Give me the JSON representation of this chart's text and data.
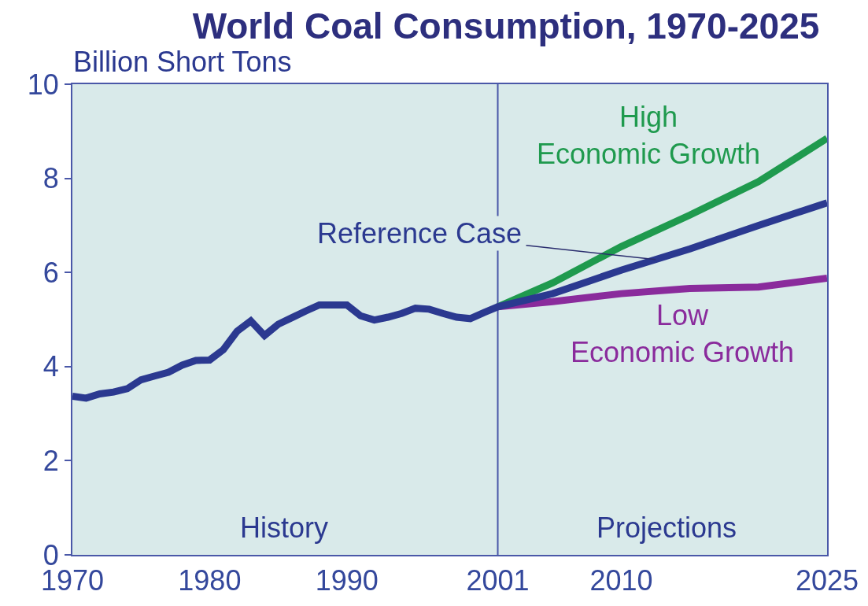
{
  "chart_data": {
    "type": "line",
    "title": "World Coal Consumption, 1970-2025",
    "ylabel": "Billion Short Tons",
    "xlim": [
      1970,
      2025
    ],
    "xticks": [
      1970,
      1980,
      1990,
      2001,
      2010,
      2025
    ],
    "ylim": [
      0,
      10
    ],
    "yticks": [
      0,
      2,
      4,
      6,
      8,
      10
    ],
    "grid": false,
    "legend": false,
    "marker": "none",
    "line_style": "solid",
    "series": [
      {
        "name": "High Economic Growth",
        "color": "#1f9a4e",
        "x": [
          2001,
          2005,
          2010,
          2015,
          2020,
          2025
        ],
        "values": [
          5.27,
          5.78,
          6.55,
          7.22,
          7.93,
          8.85
        ]
      },
      {
        "name": "Low Economic Growth",
        "color": "#8a2b9c",
        "x": [
          2001,
          2005,
          2010,
          2015,
          2020,
          2025
        ],
        "values": [
          5.27,
          5.38,
          5.55,
          5.66,
          5.69,
          5.88
        ]
      },
      {
        "name": "Reference Case",
        "color": "#2b3990",
        "x": [
          1970,
          1971,
          1972,
          1973,
          1974,
          1975,
          1976,
          1977,
          1978,
          1979,
          1980,
          1981,
          1982,
          1983,
          1984,
          1985,
          1986,
          1987,
          1988,
          1989,
          1990,
          1991,
          1992,
          1993,
          1994,
          1995,
          1996,
          1997,
          1998,
          1999,
          2000,
          2001,
          2005,
          2010,
          2015,
          2020,
          2025
        ],
        "values": [
          3.37,
          3.33,
          3.42,
          3.46,
          3.53,
          3.72,
          3.8,
          3.88,
          4.03,
          4.13,
          4.14,
          4.36,
          4.75,
          4.97,
          4.66,
          4.9,
          5.04,
          5.18,
          5.31,
          5.31,
          5.31,
          5.08,
          4.99,
          5.05,
          5.13,
          5.24,
          5.22,
          5.13,
          5.05,
          5.02,
          5.15,
          5.27,
          5.55,
          6.05,
          6.5,
          7.0,
          7.48
        ]
      }
    ],
    "ref_lines": [
      {
        "axis": "x",
        "value": 2001,
        "color": "#4a58a8"
      }
    ],
    "annotations": [
      "History",
      "Projections"
    ]
  }
}
